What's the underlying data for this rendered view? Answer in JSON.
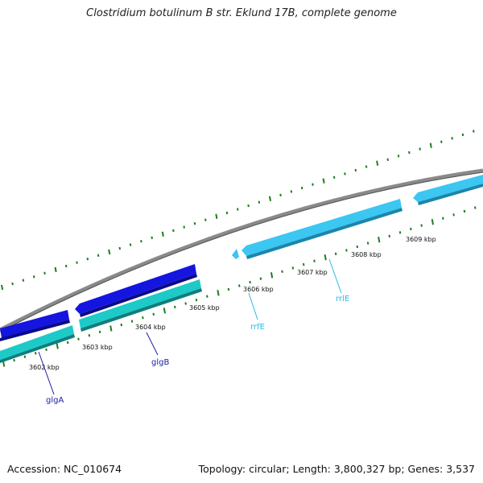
{
  "title": "Clostridium botulinum B str. Eklund 17B, complete genome",
  "footer": {
    "accession": "Accession: NC_010674",
    "stats": "Topology: circular; Length: 3,800,327 bp; Genes: 3,537"
  },
  "colors": {
    "background": "#ffffff",
    "backbone": "#8a8a8a",
    "tick": "#1e7d1e",
    "gene_blue": "#1515e0",
    "gene_teal": "#1ecac8",
    "rna_lightblue": "#3cc6f2",
    "label_dark_blue": "#1a1aa8",
    "label_light_blue": "#2ab8e8"
  },
  "scale": {
    "labels": [
      "3602 kbp",
      "3603 kbp",
      "3604 kbp",
      "3605 kbp",
      "3606 kbp",
      "3607 kbp",
      "3608 kbp",
      "3609 kbp"
    ]
  },
  "genes": [
    {
      "label": "glgA",
      "track": "teal-and-blue",
      "strand": "minus"
    },
    {
      "label": "glgB",
      "track": "teal-and-blue",
      "strand": "minus"
    },
    {
      "label": "rrfE",
      "track": "rna",
      "strand": "minus"
    },
    {
      "label": "rrlE",
      "track": "rna",
      "strand": "minus"
    }
  ]
}
